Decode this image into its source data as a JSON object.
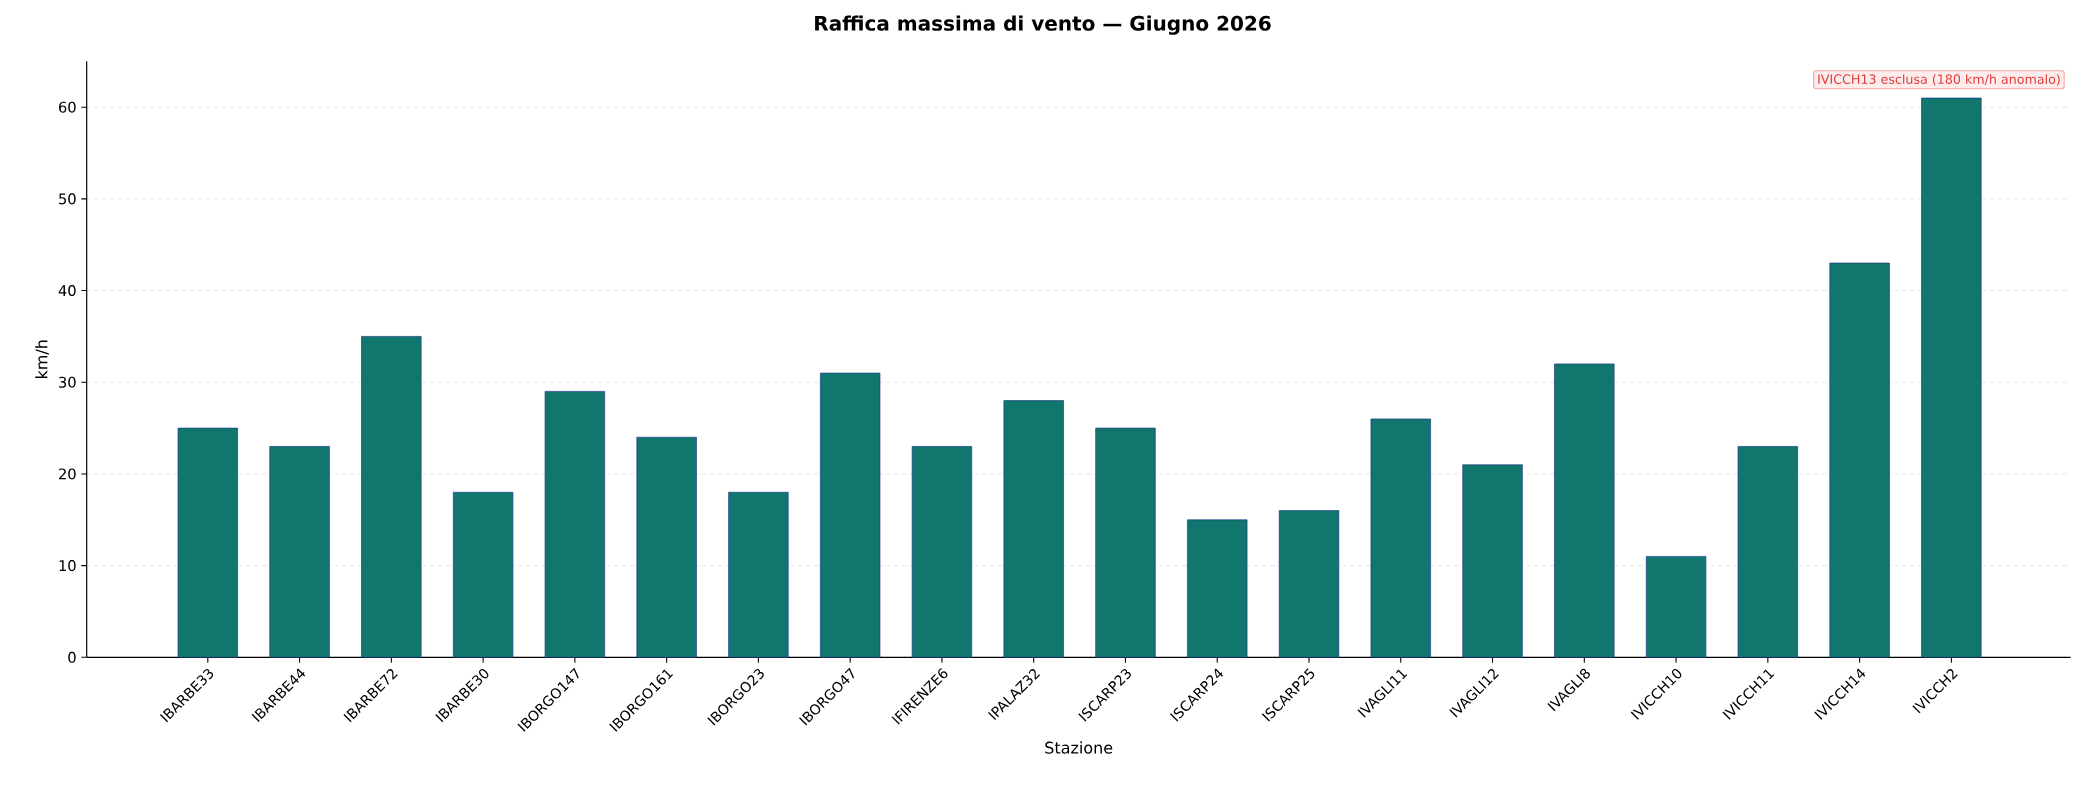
{
  "chart_data": {
    "type": "bar",
    "title": "Raffica massima di vento — Giugno 2026",
    "xlabel": "Stazione",
    "ylabel": "km/h",
    "categories": [
      "IBARBE33",
      "IBARBE44",
      "IBARBE72",
      "IBARBE30",
      "IBORGO147",
      "IBORGO161",
      "IBORGO23",
      "IBORGO47",
      "IFIRENZE6",
      "IPALAZ32",
      "ISCARP23",
      "ISCARP24",
      "ISCARP25",
      "IVAGLI11",
      "IVAGLI12",
      "IVAGLI8",
      "IVICCH10",
      "IVICCH11",
      "IVICCH14",
      "IVICCH2"
    ],
    "values": [
      25,
      23,
      35,
      18,
      29,
      24,
      18,
      31,
      23,
      28,
      25,
      15,
      16,
      26,
      21,
      32,
      11,
      23,
      43,
      61
    ],
    "color": "#10766e",
    "ylim": [
      0,
      65
    ],
    "yticks": [
      0,
      10,
      20,
      30,
      40,
      50,
      60
    ],
    "grid": "y",
    "annotations": [
      "IVICCH13 esclusa (180 km/h anomalo)"
    ]
  }
}
